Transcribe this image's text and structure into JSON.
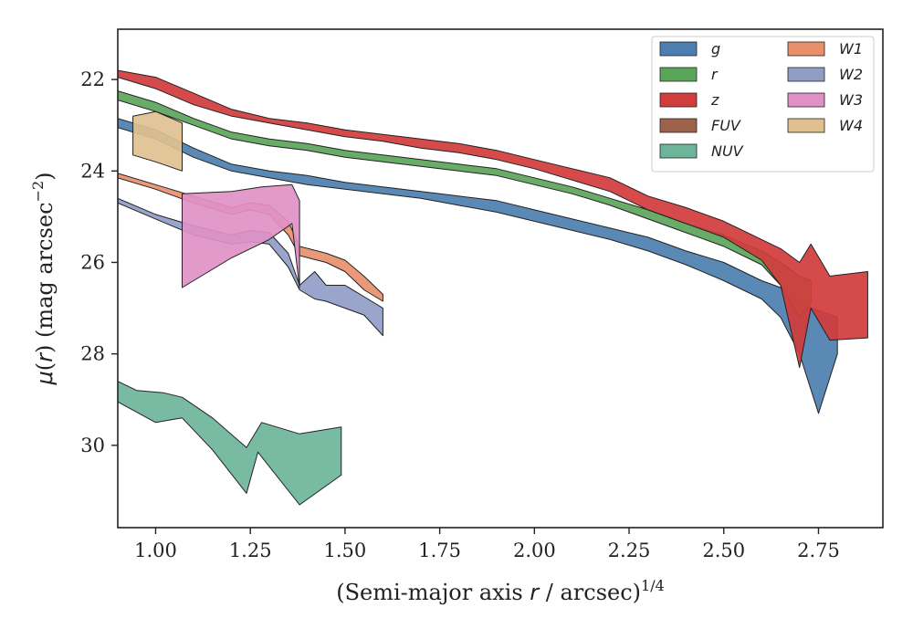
{
  "chart_data": {
    "type": "area",
    "xlabel": "(Semi-major axis r / arcsec)^{1/4}",
    "xlabel_parts": {
      "pre": "(Semi-major axis ",
      "var": "r",
      "post": " / arcsec)",
      "sup": "1/4"
    },
    "ylabel": "μ(r) (mag arcsec^{-2})",
    "ylabel_parts": {
      "mu": "μ",
      "lp": "(",
      "var": "r",
      "rp": ") (mag arcsec",
      "sup": "−2",
      "end": ")"
    },
    "xlim": [
      0.9,
      2.92
    ],
    "ylim": [
      31.8,
      20.9
    ],
    "y_inverted": true,
    "x_ticks": [
      1.0,
      1.25,
      1.5,
      1.75,
      2.0,
      2.25,
      2.5,
      2.75
    ],
    "x_tick_labels": [
      "1.00",
      "1.25",
      "1.50",
      "1.75",
      "2.00",
      "2.25",
      "2.50",
      "2.75"
    ],
    "y_ticks": [
      22,
      24,
      26,
      28,
      30
    ],
    "y_tick_labels": [
      "22",
      "24",
      "26",
      "28",
      "30"
    ],
    "grid": false,
    "legend_position": "top-right",
    "legend_columns": 2,
    "series": [
      {
        "name": "g",
        "color": "#4c7fb0",
        "upper": [
          [
            0.9,
            22.85
          ],
          [
            1.0,
            23.1
          ],
          [
            1.1,
            23.5
          ],
          [
            1.2,
            23.85
          ],
          [
            1.3,
            24.0
          ],
          [
            1.4,
            24.1
          ],
          [
            1.5,
            24.25
          ],
          [
            1.6,
            24.35
          ],
          [
            1.7,
            24.45
          ],
          [
            1.8,
            24.55
          ],
          [
            1.9,
            24.65
          ],
          [
            2.0,
            24.85
          ],
          [
            2.1,
            25.05
          ],
          [
            2.2,
            25.25
          ],
          [
            2.3,
            25.45
          ],
          [
            2.4,
            25.75
          ],
          [
            2.5,
            26.0
          ],
          [
            2.6,
            26.4
          ],
          [
            2.65,
            26.55
          ],
          [
            2.7,
            26.9
          ],
          [
            2.75,
            27.05
          ],
          [
            2.8,
            27.2
          ]
        ],
        "lower": [
          [
            0.9,
            23.05
          ],
          [
            1.0,
            23.3
          ],
          [
            1.1,
            23.7
          ],
          [
            1.2,
            24.0
          ],
          [
            1.3,
            24.15
          ],
          [
            1.4,
            24.3
          ],
          [
            1.5,
            24.4
          ],
          [
            1.6,
            24.5
          ],
          [
            1.7,
            24.6
          ],
          [
            1.8,
            24.75
          ],
          [
            1.9,
            24.9
          ],
          [
            2.0,
            25.1
          ],
          [
            2.1,
            25.3
          ],
          [
            2.2,
            25.5
          ],
          [
            2.3,
            25.75
          ],
          [
            2.4,
            26.05
          ],
          [
            2.5,
            26.4
          ],
          [
            2.6,
            26.8
          ],
          [
            2.65,
            27.2
          ],
          [
            2.7,
            28.0
          ],
          [
            2.75,
            29.3
          ],
          [
            2.8,
            28.0
          ]
        ]
      },
      {
        "name": "r",
        "color": "#5ba55b",
        "upper": [
          [
            0.9,
            22.25
          ],
          [
            1.0,
            22.5
          ],
          [
            1.1,
            22.85
          ],
          [
            1.2,
            23.15
          ],
          [
            1.3,
            23.3
          ],
          [
            1.4,
            23.4
          ],
          [
            1.5,
            23.55
          ],
          [
            1.6,
            23.65
          ],
          [
            1.7,
            23.75
          ],
          [
            1.8,
            23.85
          ],
          [
            1.9,
            23.95
          ],
          [
            2.0,
            24.15
          ],
          [
            2.1,
            24.35
          ],
          [
            2.2,
            24.6
          ],
          [
            2.3,
            24.85
          ],
          [
            2.4,
            25.15
          ],
          [
            2.5,
            25.4
          ],
          [
            2.6,
            25.75
          ],
          [
            2.65,
            26.0
          ],
          [
            2.7,
            26.3
          ],
          [
            2.73,
            26.4
          ]
        ],
        "lower": [
          [
            0.9,
            22.45
          ],
          [
            1.0,
            22.7
          ],
          [
            1.1,
            23.0
          ],
          [
            1.2,
            23.3
          ],
          [
            1.3,
            23.45
          ],
          [
            1.4,
            23.55
          ],
          [
            1.5,
            23.7
          ],
          [
            1.6,
            23.8
          ],
          [
            1.7,
            23.9
          ],
          [
            1.8,
            24.0
          ],
          [
            1.9,
            24.1
          ],
          [
            2.0,
            24.3
          ],
          [
            2.1,
            24.5
          ],
          [
            2.2,
            24.75
          ],
          [
            2.3,
            25.05
          ],
          [
            2.4,
            25.35
          ],
          [
            2.5,
            25.65
          ],
          [
            2.6,
            26.05
          ],
          [
            2.65,
            26.5
          ],
          [
            2.7,
            27.2
          ],
          [
            2.73,
            26.9
          ]
        ]
      },
      {
        "name": "z",
        "color": "#d13c3c",
        "upper": [
          [
            0.9,
            21.8
          ],
          [
            1.0,
            21.95
          ],
          [
            1.1,
            22.3
          ],
          [
            1.2,
            22.65
          ],
          [
            1.3,
            22.85
          ],
          [
            1.4,
            22.95
          ],
          [
            1.5,
            23.1
          ],
          [
            1.6,
            23.2
          ],
          [
            1.7,
            23.3
          ],
          [
            1.8,
            23.4
          ],
          [
            1.9,
            23.55
          ],
          [
            2.0,
            23.75
          ],
          [
            2.1,
            23.95
          ],
          [
            2.2,
            24.15
          ],
          [
            2.3,
            24.55
          ],
          [
            2.4,
            24.8
          ],
          [
            2.5,
            25.1
          ],
          [
            2.6,
            25.5
          ],
          [
            2.65,
            25.7
          ],
          [
            2.7,
            26.0
          ],
          [
            2.73,
            25.6
          ],
          [
            2.78,
            26.3
          ],
          [
            2.88,
            26.2
          ]
        ],
        "lower": [
          [
            0.9,
            21.95
          ],
          [
            1.0,
            22.2
          ],
          [
            1.1,
            22.55
          ],
          [
            1.2,
            22.8
          ],
          [
            1.3,
            22.95
          ],
          [
            1.4,
            23.1
          ],
          [
            1.5,
            23.25
          ],
          [
            1.6,
            23.35
          ],
          [
            1.7,
            23.5
          ],
          [
            1.8,
            23.6
          ],
          [
            1.9,
            23.75
          ],
          [
            2.0,
            23.95
          ],
          [
            2.1,
            24.2
          ],
          [
            2.2,
            24.45
          ],
          [
            2.3,
            24.85
          ],
          [
            2.4,
            25.15
          ],
          [
            2.5,
            25.45
          ],
          [
            2.6,
            25.95
          ],
          [
            2.65,
            26.5
          ],
          [
            2.7,
            28.3
          ],
          [
            2.73,
            27.0
          ],
          [
            2.78,
            27.7
          ],
          [
            2.88,
            27.65
          ]
        ]
      },
      {
        "name": "W1",
        "color": "#e8906c",
        "upper": [
          [
            0.9,
            24.05
          ],
          [
            1.0,
            24.3
          ],
          [
            1.1,
            24.55
          ],
          [
            1.2,
            24.8
          ],
          [
            1.25,
            24.7
          ],
          [
            1.3,
            24.75
          ],
          [
            1.35,
            25.1
          ],
          [
            1.38,
            25.65
          ],
          [
            1.45,
            25.8
          ],
          [
            1.5,
            25.95
          ],
          [
            1.55,
            26.3
          ],
          [
            1.6,
            26.7
          ]
        ],
        "lower": [
          [
            0.9,
            24.15
          ],
          [
            1.0,
            24.4
          ],
          [
            1.1,
            24.7
          ],
          [
            1.2,
            24.95
          ],
          [
            1.25,
            24.85
          ],
          [
            1.3,
            24.95
          ],
          [
            1.35,
            25.4
          ],
          [
            1.38,
            25.85
          ],
          [
            1.45,
            26.0
          ],
          [
            1.5,
            26.2
          ],
          [
            1.55,
            26.6
          ],
          [
            1.6,
            26.85
          ]
        ]
      },
      {
        "name": "W2",
        "color": "#909dc5",
        "upper": [
          [
            0.9,
            24.6
          ],
          [
            1.0,
            24.95
          ],
          [
            1.1,
            25.2
          ],
          [
            1.2,
            25.4
          ],
          [
            1.25,
            25.3
          ],
          [
            1.3,
            25.35
          ],
          [
            1.35,
            25.8
          ],
          [
            1.38,
            26.5
          ],
          [
            1.42,
            26.2
          ],
          [
            1.45,
            26.5
          ],
          [
            1.5,
            26.5
          ],
          [
            1.55,
            26.75
          ],
          [
            1.6,
            27.0
          ]
        ],
        "lower": [
          [
            0.9,
            24.7
          ],
          [
            1.0,
            25.05
          ],
          [
            1.1,
            25.4
          ],
          [
            1.2,
            25.6
          ],
          [
            1.25,
            25.55
          ],
          [
            1.3,
            25.6
          ],
          [
            1.35,
            26.1
          ],
          [
            1.38,
            26.6
          ],
          [
            1.42,
            26.8
          ],
          [
            1.45,
            26.85
          ],
          [
            1.5,
            27.0
          ],
          [
            1.55,
            27.15
          ],
          [
            1.6,
            27.6
          ]
        ]
      },
      {
        "name": "W3",
        "color": "#df91c7",
        "upper": [
          [
            1.07,
            24.5
          ],
          [
            1.2,
            24.45
          ],
          [
            1.28,
            24.35
          ],
          [
            1.36,
            24.3
          ],
          [
            1.38,
            24.65
          ]
        ],
        "lower": [
          [
            1.07,
            26.55
          ],
          [
            1.2,
            25.9
          ],
          [
            1.3,
            25.5
          ],
          [
            1.36,
            25.15
          ],
          [
            1.38,
            26.55
          ]
        ]
      },
      {
        "name": "W4",
        "color": "#e0c08f",
        "upper": [
          [
            0.94,
            22.8
          ],
          [
            1.0,
            22.7
          ],
          [
            1.07,
            22.95
          ]
        ],
        "lower": [
          [
            0.94,
            23.65
          ],
          [
            1.0,
            23.8
          ],
          [
            1.07,
            24.0
          ]
        ]
      },
      {
        "name": "FUV",
        "color": "#9c634a",
        "upper": [],
        "lower": []
      },
      {
        "name": "NUV",
        "color": "#6db59a",
        "upper": [
          [
            0.9,
            28.6
          ],
          [
            0.95,
            28.8
          ],
          [
            1.02,
            28.85
          ],
          [
            1.07,
            28.95
          ],
          [
            1.15,
            29.4
          ],
          [
            1.24,
            30.05
          ],
          [
            1.28,
            29.5
          ],
          [
            1.38,
            29.75
          ],
          [
            1.49,
            29.6
          ]
        ],
        "lower": [
          [
            0.9,
            29.05
          ],
          [
            1.0,
            29.5
          ],
          [
            1.07,
            29.4
          ],
          [
            1.15,
            30.1
          ],
          [
            1.24,
            31.05
          ],
          [
            1.27,
            30.15
          ],
          [
            1.38,
            31.3
          ],
          [
            1.49,
            30.65
          ]
        ]
      }
    ]
  },
  "legend": {
    "items": [
      {
        "label": "g",
        "color": "#4c7fb0",
        "col": 0,
        "row": 0
      },
      {
        "label": "r",
        "color": "#5ba55b",
        "col": 0,
        "row": 1
      },
      {
        "label": "z",
        "color": "#d13c3c",
        "col": 0,
        "row": 2
      },
      {
        "label": "FUV",
        "color": "#9c634a",
        "col": 0,
        "row": 3
      },
      {
        "label": "NUV",
        "color": "#6db59a",
        "col": 0,
        "row": 4
      },
      {
        "label": "W1",
        "color": "#e8906c",
        "col": 1,
        "row": 0
      },
      {
        "label": "W2",
        "color": "#909dc5",
        "col": 1,
        "row": 1
      },
      {
        "label": "W3",
        "color": "#df91c7",
        "col": 1,
        "row": 2
      },
      {
        "label": "W4",
        "color": "#e0c08f",
        "col": 1,
        "row": 3
      }
    ]
  }
}
